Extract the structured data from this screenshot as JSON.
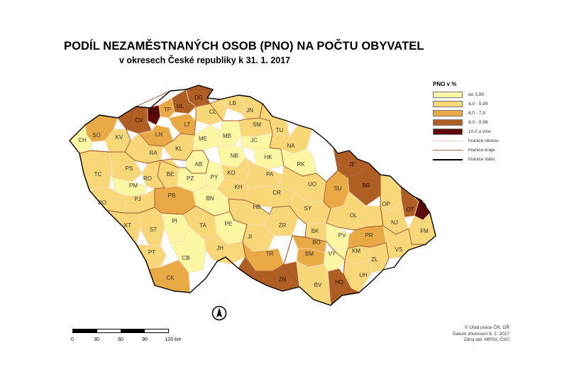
{
  "title": "PODÍL NEZAMĚSTNANÝCH OSOB (PNO) NA POČTU OBYVATEL",
  "subtitle": "v okresech České republiky k 31. 1. 2017",
  "legend": {
    "title": "PNO v %",
    "classes": [
      {
        "label": "do 3,99",
        "color": "#fcf7a3"
      },
      {
        "label": "4,0 - 5,99",
        "color": "#f7d777"
      },
      {
        "label": "6,0 - 7,9",
        "color": "#e9aa45"
      },
      {
        "label": "8,0 - 9,99",
        "color": "#b05f24"
      },
      {
        "label": "10,0 a více",
        "color": "#5e0a0a"
      }
    ],
    "lines": [
      {
        "label": "hranice okresu",
        "color": "#f2d0c0"
      },
      {
        "label": "hranice kraje",
        "color": "#b07050"
      },
      {
        "label": "hranice státu",
        "color": "#000000"
      }
    ]
  },
  "credits": [
    "© Úřad práce ČR, GŘ",
    "Datum zhotovení 8. 2. 2017",
    "Zdroj dat: MPSV, ČSÚ"
  ],
  "scale": {
    "ticks": [
      "0",
      "30",
      "60",
      "90",
      "120 km"
    ]
  },
  "districts": [
    {
      "code": "DC",
      "cls": 3
    },
    {
      "code": "CV",
      "cls": 3
    },
    {
      "code": "TP",
      "cls": 2
    },
    {
      "code": "UL",
      "cls": 3
    },
    {
      "code": "MO",
      "cls": 4
    },
    {
      "code": "LT",
      "cls": 2
    },
    {
      "code": "CL",
      "cls": 1
    },
    {
      "code": "LB",
      "cls": 1
    },
    {
      "code": "JN",
      "cls": 1
    },
    {
      "code": "SO",
      "cls": 2
    },
    {
      "code": "KV",
      "cls": 1
    },
    {
      "code": "CH",
      "cls": 0
    },
    {
      "code": "LN",
      "cls": 2
    },
    {
      "code": "KL",
      "cls": 1
    },
    {
      "code": "ME",
      "cls": 0
    },
    {
      "code": "MB",
      "cls": 0
    },
    {
      "code": "SM",
      "cls": 1
    },
    {
      "code": "TU",
      "cls": 1
    },
    {
      "code": "JC",
      "cls": 0
    },
    {
      "code": "NA",
      "cls": 1
    },
    {
      "code": "RA",
      "cls": 1
    },
    {
      "code": "BE",
      "cls": 1
    },
    {
      "code": "AB",
      "cls": 0
    },
    {
      "code": "NB",
      "cls": 0
    },
    {
      "code": "HK",
      "cls": 0
    },
    {
      "code": "RK",
      "cls": 0
    },
    {
      "code": "TC",
      "cls": 1
    },
    {
      "code": "PS",
      "cls": 1
    },
    {
      "code": "RO",
      "cls": 1
    },
    {
      "code": "PZ",
      "cls": 0
    },
    {
      "code": "PY",
      "cls": 0
    },
    {
      "code": "KO",
      "cls": 1
    },
    {
      "code": "KH",
      "cls": 1
    },
    {
      "code": "PA",
      "cls": 1
    },
    {
      "code": "PM",
      "cls": 0
    },
    {
      "code": "PJ",
      "cls": 1
    },
    {
      "code": "DO",
      "cls": 1
    },
    {
      "code": "PB",
      "cls": 2
    },
    {
      "code": "BN",
      "cls": 0
    },
    {
      "code": "CR",
      "cls": 1
    },
    {
      "code": "UO",
      "cls": 1
    },
    {
      "code": "JE",
      "cls": 3
    },
    {
      "code": "SU",
      "cls": 2
    },
    {
      "code": "BR",
      "cls": 3
    },
    {
      "code": "HB",
      "cls": 1
    },
    {
      "code": "SY",
      "cls": 1
    },
    {
      "code": "OP",
      "cls": 1
    },
    {
      "code": "OT",
      "cls": 3
    },
    {
      "code": "KA",
      "cls": 4
    },
    {
      "code": "NJ",
      "cls": 1
    },
    {
      "code": "FM",
      "cls": 1
    },
    {
      "code": "OL",
      "cls": 1
    },
    {
      "code": "KT",
      "cls": 1
    },
    {
      "code": "PI",
      "cls": 0
    },
    {
      "code": "ST",
      "cls": 1
    },
    {
      "code": "TA",
      "cls": 1
    },
    {
      "code": "PE",
      "cls": 0
    },
    {
      "code": "ZR",
      "cls": 1
    },
    {
      "code": "JI",
      "cls": 1
    },
    {
      "code": "BK",
      "cls": 1
    },
    {
      "code": "PV",
      "cls": 0
    },
    {
      "code": "PR",
      "cls": 2
    },
    {
      "code": "BO",
      "cls": 2
    },
    {
      "code": "BM",
      "cls": 2
    },
    {
      "code": "VS",
      "cls": 1
    },
    {
      "code": "KM",
      "cls": 1
    },
    {
      "code": "ZL",
      "cls": 1
    },
    {
      "code": "PT",
      "cls": 1
    },
    {
      "code": "JH",
      "cls": 1
    },
    {
      "code": "TR",
      "cls": 2
    },
    {
      "code": "VY",
      "cls": 0
    },
    {
      "code": "UH",
      "cls": 1
    },
    {
      "code": "CB",
      "cls": 0
    },
    {
      "code": "CK",
      "cls": 2
    },
    {
      "code": "ZN",
      "cls": 3
    },
    {
      "code": "BV",
      "cls": 1
    },
    {
      "code": "HO",
      "cls": 3
    }
  ]
}
